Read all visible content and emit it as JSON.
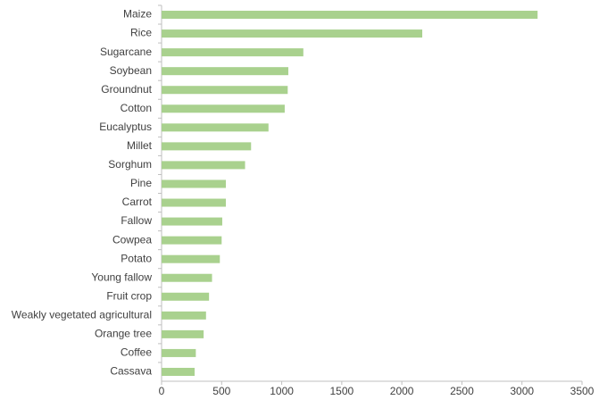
{
  "chart_data": {
    "type": "barh",
    "categories": [
      "Maize",
      "Rice",
      "Sugarcane",
      "Soybean",
      "Groundnut",
      "Cotton",
      "Eucalyptus",
      "Millet",
      "Sorghum",
      "Pine",
      "Carrot",
      "Fallow",
      "Cowpea",
      "Potato",
      "Young fallow",
      "Fruit crop",
      "Weakly vegetated agricultural",
      "Orange tree",
      "Coffee",
      "Cassava"
    ],
    "values": [
      3130,
      2170,
      1180,
      1055,
      1050,
      1025,
      890,
      745,
      695,
      535,
      535,
      505,
      500,
      485,
      420,
      395,
      370,
      350,
      285,
      275
    ],
    "color": "#a9d18e",
    "xlim": [
      0,
      3500
    ],
    "xticks": [
      0,
      500,
      1000,
      1500,
      2000,
      2500,
      3000,
      3500
    ],
    "grid": false
  }
}
